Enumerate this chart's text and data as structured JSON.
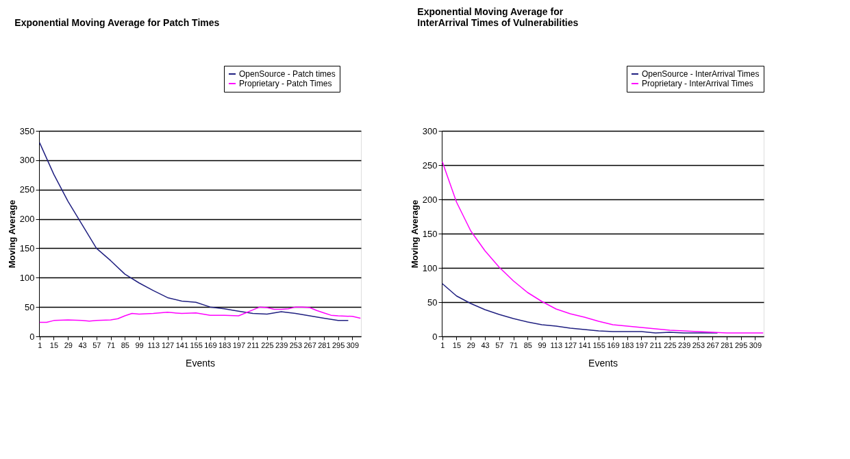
{
  "chart_data": [
    {
      "type": "line",
      "title": "Exponential Moving Average for Patch Times",
      "xlabel": "Events",
      "ylabel": "Moving Average",
      "xlim": [
        0.5,
        317.5
      ],
      "xticks": [
        1,
        15,
        29,
        43,
        57,
        71,
        85,
        99,
        113,
        127,
        141,
        155,
        169,
        183,
        197,
        211,
        225,
        239,
        253,
        267,
        281,
        295,
        309
      ],
      "ylim": [
        0,
        350
      ],
      "yticks": [
        0,
        50,
        100,
        150,
        200,
        250,
        300,
        350
      ],
      "grid": "y",
      "legend": "top right",
      "marker": "none",
      "line_style": "solid",
      "series": [
        {
          "name": "OpenSource - Patch times",
          "color": "#1f1f80",
          "x": [
            1,
            15,
            29,
            43,
            57,
            71,
            85,
            99,
            113,
            127,
            141,
            155,
            169,
            183,
            197,
            211,
            225,
            239,
            253,
            267,
            281,
            295,
            305
          ],
          "values": [
            330,
            276,
            230,
            190,
            150,
            129,
            106,
            91,
            78,
            66,
            60,
            58,
            50,
            47,
            43,
            39,
            38,
            42,
            39,
            35,
            31,
            27,
            27
          ]
        },
        {
          "name": "Proprietary - Patch Times",
          "color": "#ff00ff",
          "x": [
            1,
            8,
            15,
            29,
            43,
            50,
            57,
            71,
            78,
            85,
            92,
            99,
            113,
            127,
            141,
            155,
            169,
            183,
            197,
            204,
            211,
            218,
            225,
            232,
            239,
            246,
            253,
            260,
            267,
            274,
            281,
            288,
            295,
            309,
            317
          ],
          "values": [
            24,
            24,
            27,
            28,
            27,
            26,
            27,
            28,
            30,
            35,
            39,
            38,
            39,
            41,
            39,
            40,
            36,
            36,
            35,
            40,
            45,
            50,
            49,
            46,
            46,
            47,
            50,
            50,
            49,
            44,
            40,
            36,
            35,
            34,
            31
          ]
        }
      ]
    },
    {
      "type": "line",
      "title": "Exponential Moving Average for\nInterArrival Times of Vulnerabilities",
      "xlabel": "Events",
      "ylabel": "Moving Average",
      "xlim": [
        0.5,
        317.5
      ],
      "xticks": [
        1,
        15,
        29,
        43,
        57,
        71,
        85,
        99,
        113,
        127,
        141,
        155,
        169,
        183,
        197,
        211,
        225,
        239,
        253,
        267,
        281,
        295,
        309
      ],
      "ylim": [
        0,
        300
      ],
      "yticks": [
        0,
        50,
        100,
        150,
        200,
        250,
        300
      ],
      "grid": "y",
      "legend": "top right",
      "marker": "none",
      "line_style": "solid",
      "series": [
        {
          "name": "OpenSource - InterArrival Times",
          "color": "#1f1f80",
          "x": [
            1,
            15,
            29,
            43,
            57,
            71,
            85,
            99,
            113,
            127,
            141,
            155,
            169,
            183,
            197,
            211,
            225,
            239,
            253,
            267,
            272
          ],
          "values": [
            77,
            59,
            48,
            39,
            32,
            26,
            21,
            17,
            15,
            12,
            10,
            8,
            7,
            7,
            7,
            5,
            6,
            5,
            5,
            5,
            5
          ]
        },
        {
          "name": "Proprietary - InterArrival Times",
          "color": "#ff00ff",
          "x": [
            1,
            15,
            29,
            43,
            57,
            71,
            85,
            99,
            113,
            127,
            141,
            155,
            169,
            183,
            197,
            211,
            225,
            239,
            253,
            267,
            281,
            295,
            317
          ],
          "values": [
            255,
            196,
            154,
            125,
            101,
            81,
            64,
            51,
            40,
            33,
            28,
            22,
            17,
            15,
            13,
            11,
            9,
            8,
            7,
            6,
            5,
            5,
            5
          ]
        }
      ]
    }
  ]
}
